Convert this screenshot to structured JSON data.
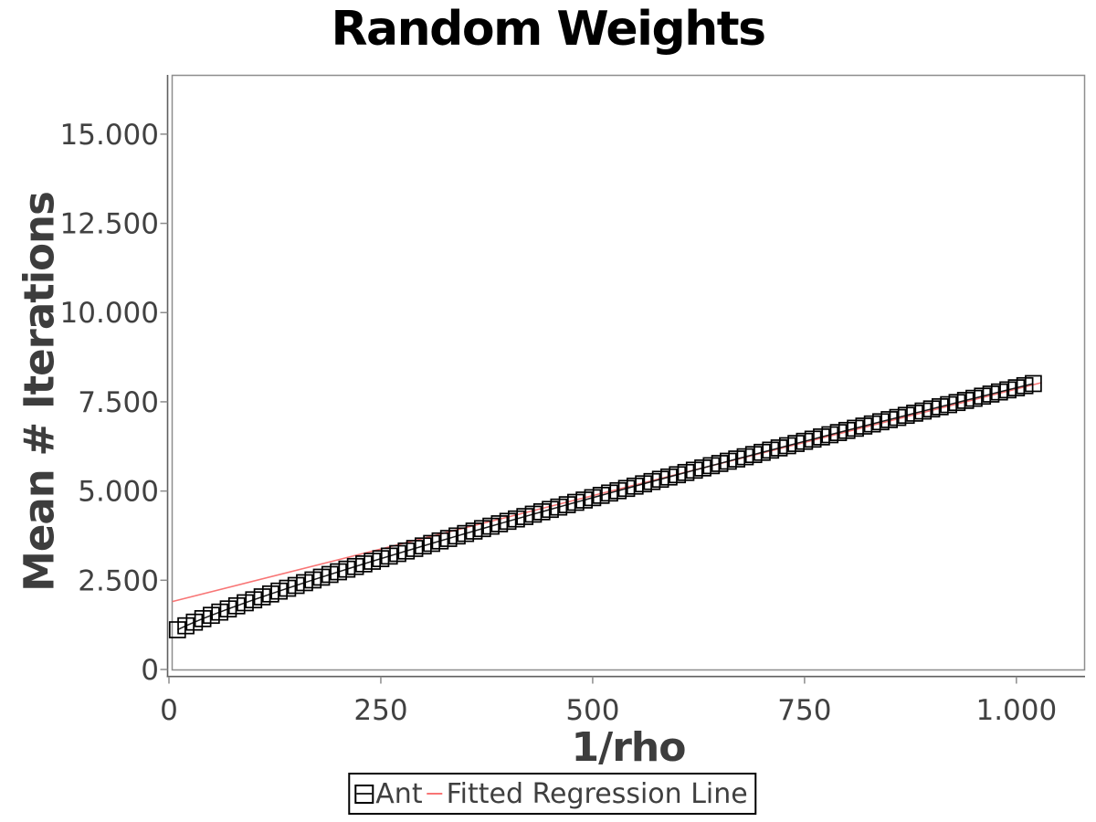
{
  "title": "Random Weights",
  "colors": {
    "title": "#000000",
    "axis_text": "#414141",
    "axis_label": "#3d3d3d",
    "plot_border": "#8e8e8e",
    "axis_spine": "#5f5f5f",
    "tick": "#8c8c8c",
    "series_line": "#1f1f1f",
    "marker_stroke": "#000000",
    "regression_line": "#f87575",
    "legend_border": "#000000",
    "legend_text": "#3f3f3f",
    "background": "#ffffff"
  },
  "axes": {
    "x": {
      "label": "1/rho",
      "ticks": [
        {
          "value": 0,
          "label": "0"
        },
        {
          "value": 250,
          "label": "250"
        },
        {
          "value": 500,
          "label": "500"
        },
        {
          "value": 750,
          "label": "750"
        },
        {
          "value": 1000,
          "label": "1.000"
        }
      ]
    },
    "y": {
      "label": "Mean # Iterations",
      "ticks": [
        {
          "value": 0,
          "label": "0"
        },
        {
          "value": 2500,
          "label": "2.500"
        },
        {
          "value": 5000,
          "label": "5.000"
        },
        {
          "value": 7500,
          "label": "7.500"
        },
        {
          "value": 10000,
          "label": "10.000"
        },
        {
          "value": 12500,
          "label": "12.500"
        },
        {
          "value": 15000,
          "label": "15.000"
        }
      ]
    }
  },
  "legend": {
    "ant_label": "Ant",
    "regression_label": "Fitted Regression Line"
  },
  "chart_data": {
    "type": "scatter",
    "title": "Random Weights",
    "xlabel": "1/rho",
    "ylabel": "Mean # Iterations",
    "xlim": [
      0,
      1081
    ],
    "ylim": [
      0,
      16660
    ],
    "grid": false,
    "legend_position": "bottom-center",
    "series": [
      {
        "name": "Ant",
        "type": "scatter_with_line",
        "marker": "open-square",
        "color": "#000000",
        "x": [
          10,
          20,
          30,
          40,
          50,
          60,
          70,
          80,
          90,
          100,
          110,
          120,
          130,
          140,
          150,
          160,
          170,
          180,
          190,
          200,
          210,
          220,
          230,
          240,
          250,
          260,
          270,
          280,
          290,
          300,
          310,
          320,
          330,
          340,
          350,
          360,
          370,
          380,
          390,
          400,
          410,
          420,
          430,
          440,
          450,
          460,
          470,
          480,
          490,
          500,
          510,
          520,
          530,
          540,
          550,
          560,
          570,
          580,
          590,
          600,
          610,
          620,
          630,
          640,
          650,
          660,
          670,
          680,
          690,
          700,
          710,
          720,
          730,
          740,
          750,
          760,
          770,
          780,
          790,
          800,
          810,
          820,
          830,
          840,
          850,
          860,
          870,
          880,
          890,
          900,
          910,
          920,
          930,
          940,
          950,
          960,
          970,
          980,
          990,
          1000,
          1010,
          1020
        ],
        "y": [
          1113,
          1224,
          1326,
          1424,
          1517,
          1608,
          1697,
          1784,
          1869,
          1952,
          2035,
          2116,
          2196,
          2276,
          2354,
          2432,
          2509,
          2586,
          2662,
          2737,
          2811,
          2885,
          2959,
          3032,
          3105,
          3177,
          3249,
          3320,
          3391,
          3462,
          3532,
          3602,
          3671,
          3741,
          3810,
          3878,
          3947,
          4015,
          4083,
          4151,
          4218,
          4285,
          4352,
          4418,
          4485,
          4551,
          4617,
          4683,
          4748,
          4814,
          4879,
          4944,
          5009,
          5073,
          5137,
          5202,
          5266,
          5330,
          5393,
          5457,
          5520,
          5584,
          5647,
          5710,
          5772,
          5835,
          5898,
          5960,
          6022,
          6084,
          6146,
          6208,
          6270,
          6332,
          6393,
          6454,
          6516,
          6577,
          6638,
          6698,
          6759,
          6820,
          6880,
          6941,
          7001,
          7061,
          7121,
          7181,
          7241,
          7301,
          7361,
          7420,
          7480,
          7539,
          7598,
          7658,
          7717,
          7776,
          7835,
          7893,
          7952,
          8011
        ]
      },
      {
        "name": "Fitted Regression Line",
        "type": "line",
        "color": "#f87575",
        "x": [
          4,
          1030
        ],
        "y": [
          1904,
          8039
        ]
      }
    ]
  }
}
